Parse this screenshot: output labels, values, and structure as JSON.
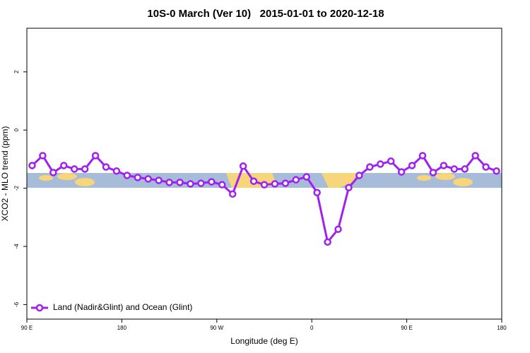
{
  "chart_data": {
    "type": "line",
    "title": "10S-0 March (Ver 10)   2015-01-01 to 2020-12-18",
    "x_label": "Longitude (deg E)",
    "y_label": "XCO2 - MLO trend (ppm)",
    "x": [
      95,
      105,
      115,
      125,
      135,
      145,
      155,
      165,
      175,
      185,
      195,
      205,
      215,
      225,
      235,
      245,
      255,
      265,
      275,
      285,
      295,
      305,
      315,
      325,
      335,
      345,
      355,
      365,
      375,
      385,
      395,
      405,
      415,
      425,
      435,
      445,
      455,
      465,
      475,
      485,
      495,
      505,
      515,
      525,
      535
    ],
    "series": [
      {
        "name": "Land (Nadir&Glint) and Ocean (Glint)",
        "color": "#a020f0",
        "values": [
          -1.22,
          -0.88,
          -1.46,
          -1.22,
          -1.34,
          -1.34,
          -0.88,
          -1.27,
          -1.41,
          -1.56,
          -1.63,
          -1.68,
          -1.73,
          -1.8,
          -1.8,
          -1.85,
          -1.83,
          -1.78,
          -1.88,
          -2.2,
          -1.24,
          -1.76,
          -1.88,
          -1.85,
          -1.83,
          -1.71,
          -1.61,
          -2.15,
          -3.85,
          -3.41,
          -1.98,
          -1.56,
          -1.27,
          -1.17,
          -1.07,
          -1.44,
          -1.22,
          -0.88,
          -1.46,
          -1.22,
          -1.34,
          -1.34,
          -0.88,
          -1.27,
          -1.41
        ]
      }
    ],
    "xlim": [
      90,
      540
    ],
    "xticks": [
      {
        "value": 90,
        "label": "90 E"
      },
      180,
      {
        "value": 270,
        "label": "90 W"
      },
      {
        "value": 360,
        "label": "0"
      },
      {
        "value": 450,
        "label": "90 E"
      },
      {
        "value": 540,
        "label": "180"
      }
    ],
    "ylim": [
      -6.5,
      3.5
    ],
    "yticks": [
      2,
      0,
      -2,
      -4,
      -6
    ],
    "legend": "bottom-left"
  }
}
